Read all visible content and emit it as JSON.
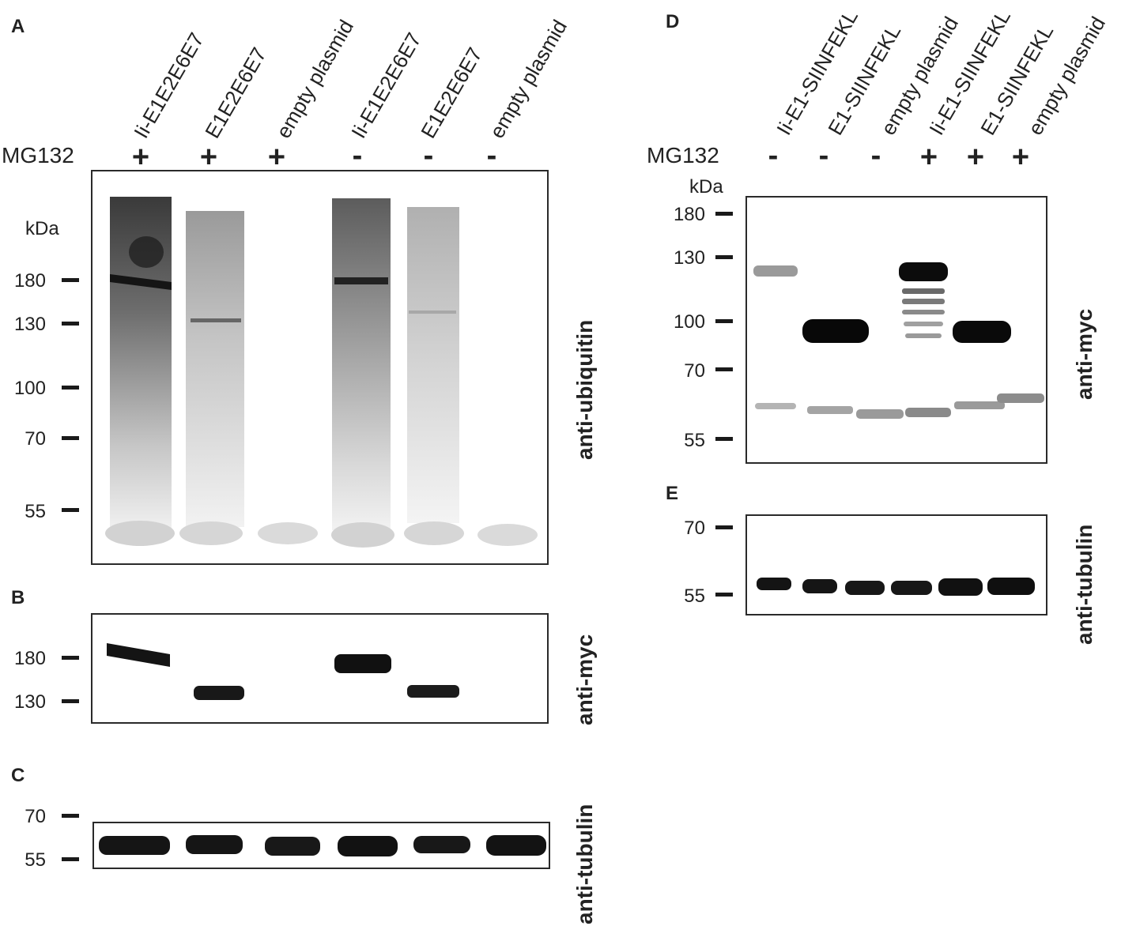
{
  "left": {
    "panels": {
      "a": "A",
      "b": "B",
      "c": "C"
    },
    "lanes": [
      "Ii-E1E2E6E7",
      "E1E2E6E7",
      "empty plasmid",
      "Ii-E1E2E6E7",
      "E1E2E6E7",
      "empty plasmid"
    ],
    "treatment_label": "MG132",
    "treatment_signs": [
      "+",
      "+",
      "+",
      "-",
      "-",
      "-"
    ],
    "kda_label": "kDa",
    "blot_a": {
      "markers": [
        "180",
        "130",
        "100",
        "70",
        "55"
      ],
      "antibody": "anti-ubiquitin"
    },
    "blot_b": {
      "markers": [
        "180",
        "130"
      ],
      "antibody": "anti-myc"
    },
    "blot_c": {
      "markers": [
        "70",
        "55"
      ],
      "antibody": "anti-tubulin"
    }
  },
  "right": {
    "panels": {
      "d": "D",
      "e": "E"
    },
    "lanes": [
      "Ii-E1-SIINFEKL",
      "E1-SIINFEKL",
      "empty plasmid",
      "Ii-E1-SIINFEKL",
      "E1-SIINFEKL",
      "empty plasmid"
    ],
    "treatment_label": "MG132",
    "treatment_signs": [
      "-",
      "-",
      "-",
      "+",
      "+",
      "+"
    ],
    "kda_label": "kDa",
    "blot_d": {
      "markers": [
        "180",
        "130",
        "100",
        "70",
        "55"
      ],
      "antibody": "anti-myc"
    },
    "blot_e": {
      "markers": [
        "70",
        "55"
      ],
      "antibody": "anti-tubulin"
    }
  },
  "colors": {
    "band": "#101010",
    "smear": "#6a6a6a",
    "faint": "#b8b8b8",
    "frame": "#2a2a2a"
  }
}
